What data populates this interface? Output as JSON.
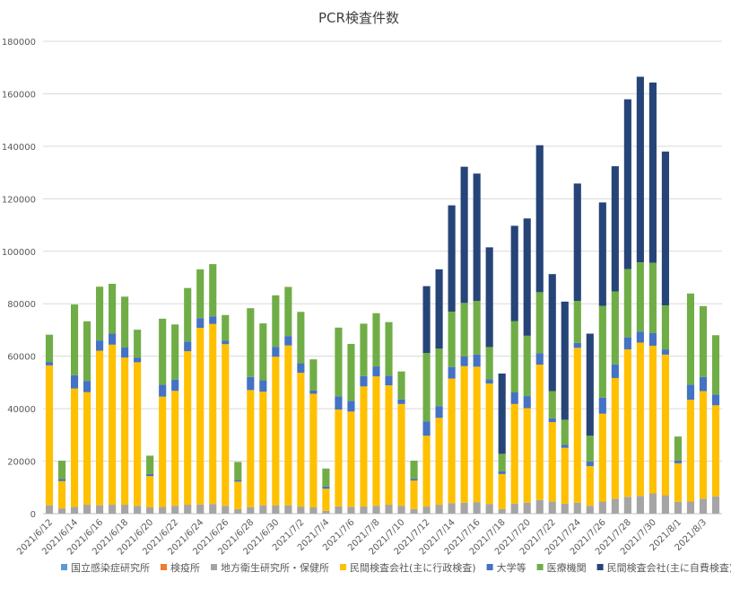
{
  "chart_data": {
    "type": "bar",
    "stacked": true,
    "title": "PCR検査件数",
    "ylim": [
      0,
      180000
    ],
    "yticks": [
      "0",
      "20000",
      "40000",
      "60000",
      "80000",
      "100000",
      "120000",
      "140000",
      "160000",
      "180000"
    ],
    "grid": true,
    "legend_position": "bottom",
    "categories": [
      "2021/6/12",
      "2021/6/13",
      "2021/6/14",
      "2021/6/15",
      "2021/6/16",
      "2021/6/17",
      "2021/6/18",
      "2021/6/19",
      "2021/6/20",
      "2021/6/21",
      "2021/6/22",
      "2021/6/23",
      "2021/6/24",
      "2021/6/25",
      "2021/6/26",
      "2021/6/27",
      "2021/6/28",
      "2021/6/29",
      "2021/6/30",
      "2021/7/1",
      "2021/7/2",
      "2021/7/3",
      "2021/7/4",
      "2021/7/5",
      "2021/7/6",
      "2021/7/7",
      "2021/7/8",
      "2021/7/9",
      "2021/7/10",
      "2021/7/11",
      "2021/7/12",
      "2021/7/13",
      "2021/7/14",
      "2021/7/15",
      "2021/7/16",
      "2021/7/17",
      "2021/7/18",
      "2021/7/19",
      "2021/7/20",
      "2021/7/21",
      "2021/7/22",
      "2021/7/23",
      "2021/7/24",
      "2021/7/25",
      "2021/7/26",
      "2021/7/27",
      "2021/7/28",
      "2021/7/29",
      "2021/7/30",
      "2021/7/31",
      "2021/8/1",
      "2021/8/2",
      "2021/8/3",
      "2021/8/4"
    ],
    "xtick_labels": [
      "2021/6/12",
      "",
      "2021/6/14",
      "",
      "2021/6/16",
      "",
      "2021/6/18",
      "",
      "2021/6/20",
      "",
      "2021/6/22",
      "",
      "2021/6/24",
      "",
      "2021/6/26",
      "",
      "2021/6/28",
      "",
      "2021/6/30",
      "",
      "2021/7/2",
      "",
      "2021/7/4",
      "",
      "2021/7/6",
      "",
      "2021/7/8",
      "",
      "2021/7/10",
      "",
      "2021/7/12",
      "",
      "2021/7/14",
      "",
      "2021/7/16",
      "",
      "2021/7/18",
      "",
      "2021/7/20",
      "",
      "2021/7/22",
      "",
      "2021/7/24",
      "",
      "2021/7/26",
      "",
      "2021/7/28",
      "",
      "2021/7/30",
      "",
      "2021/8/1",
      "",
      "2021/8/3",
      ""
    ],
    "series": [
      {
        "name": "国立感染症研究所",
        "color": "#5B9BD5",
        "values": [
          100,
          100,
          100,
          100,
          100,
          100,
          100,
          100,
          100,
          100,
          100,
          100,
          100,
          100,
          100,
          100,
          100,
          100,
          100,
          100,
          100,
          100,
          100,
          100,
          100,
          100,
          100,
          100,
          100,
          100,
          100,
          100,
          100,
          100,
          100,
          100,
          100,
          100,
          100,
          100,
          100,
          100,
          100,
          100,
          100,
          100,
          100,
          100,
          100,
          100,
          100,
          100,
          100,
          100
        ]
      },
      {
        "name": "検疫所",
        "color": "#ED7D31",
        "values": [
          100,
          100,
          100,
          100,
          100,
          100,
          100,
          100,
          100,
          100,
          100,
          100,
          100,
          100,
          100,
          100,
          100,
          100,
          100,
          100,
          100,
          100,
          100,
          100,
          100,
          100,
          100,
          100,
          100,
          100,
          100,
          100,
          100,
          100,
          100,
          100,
          100,
          100,
          100,
          100,
          100,
          100,
          100,
          100,
          100,
          100,
          100,
          100,
          100,
          100,
          100,
          100,
          100,
          100
        ]
      },
      {
        "name": "地方衛生研究所・保健所",
        "color": "#A5A5A5",
        "values": [
          3000,
          1800,
          2400,
          3200,
          3000,
          3200,
          3200,
          2800,
          2200,
          2400,
          2800,
          3200,
          3300,
          3500,
          2800,
          1500,
          2300,
          3000,
          3000,
          3000,
          2500,
          2200,
          900,
          2600,
          2400,
          2600,
          2800,
          3200,
          2800,
          1600,
          2500,
          3200,
          3800,
          4000,
          4200,
          3500,
          1600,
          3600,
          4000,
          5000,
          4400,
          3600,
          4000,
          2800,
          4400,
          5500,
          6200,
          6500,
          7500,
          6800,
          4300,
          4400,
          5500,
          6400
        ]
      },
      {
        "name": "民間検査会社(主に行政検査)",
        "color": "#FFC000",
        "values": [
          53300,
          10400,
          45100,
          42900,
          58900,
          61000,
          56100,
          54700,
          11900,
          42000,
          43800,
          58500,
          67300,
          68600,
          61600,
          10500,
          44600,
          43300,
          56600,
          60900,
          51000,
          43300,
          8400,
          36900,
          36300,
          45700,
          49300,
          45500,
          38800,
          10800,
          27000,
          33100,
          47500,
          52000,
          51600,
          45900,
          13300,
          38000,
          36000,
          51600,
          30300,
          21300,
          59000,
          15100,
          33500,
          46000,
          56200,
          58500,
          56300,
          53600,
          14700,
          38800,
          41000,
          34700
        ]
      },
      {
        "name": "大学等",
        "color": "#4472C4",
        "values": [
          1300,
          800,
          5100,
          4300,
          3900,
          4200,
          3800,
          1800,
          800,
          4600,
          4300,
          3700,
          3700,
          2900,
          1300,
          700,
          5000,
          4300,
          3700,
          3600,
          3600,
          1200,
          800,
          5000,
          4100,
          3900,
          3800,
          3700,
          1700,
          700,
          5500,
          4500,
          4400,
          3700,
          4600,
          1600,
          1000,
          4400,
          4600,
          4300,
          1400,
          1100,
          1900,
          1800,
          6100,
          5200,
          4600,
          4200,
          4900,
          2000,
          1100,
          5800,
          5400,
          4100
        ]
      },
      {
        "name": "医療機関",
        "color": "#70AD47",
        "values": [
          10400,
          7000,
          26900,
          22700,
          20500,
          19000,
          19400,
          10600,
          7000,
          25100,
          21000,
          20400,
          18600,
          19900,
          9800,
          6800,
          26200,
          21700,
          19700,
          18700,
          19600,
          11900,
          6900,
          26200,
          21700,
          20000,
          20300,
          20400,
          10700,
          6900,
          26000,
          21900,
          21100,
          20400,
          20500,
          12300,
          6700,
          27200,
          23000,
          23300,
          10400,
          9600,
          16000,
          9800,
          35000,
          27800,
          26000,
          26400,
          26700,
          16800,
          9100,
          34700,
          27000,
          22600
        ]
      },
      {
        "name": "民間検査会社(主に自費検査)",
        "color": "#264478",
        "values": [
          0,
          0,
          0,
          0,
          0,
          0,
          0,
          0,
          0,
          0,
          0,
          0,
          0,
          0,
          0,
          0,
          0,
          0,
          0,
          0,
          0,
          0,
          0,
          0,
          0,
          0,
          0,
          0,
          0,
          0,
          25500,
          30200,
          40500,
          51900,
          48500,
          38000,
          30600,
          36300,
          44700,
          56000,
          44600,
          45000,
          44700,
          38900,
          39400,
          47700,
          64700,
          70700,
          68700,
          58600,
          0,
          0,
          0,
          0
        ]
      }
    ]
  }
}
